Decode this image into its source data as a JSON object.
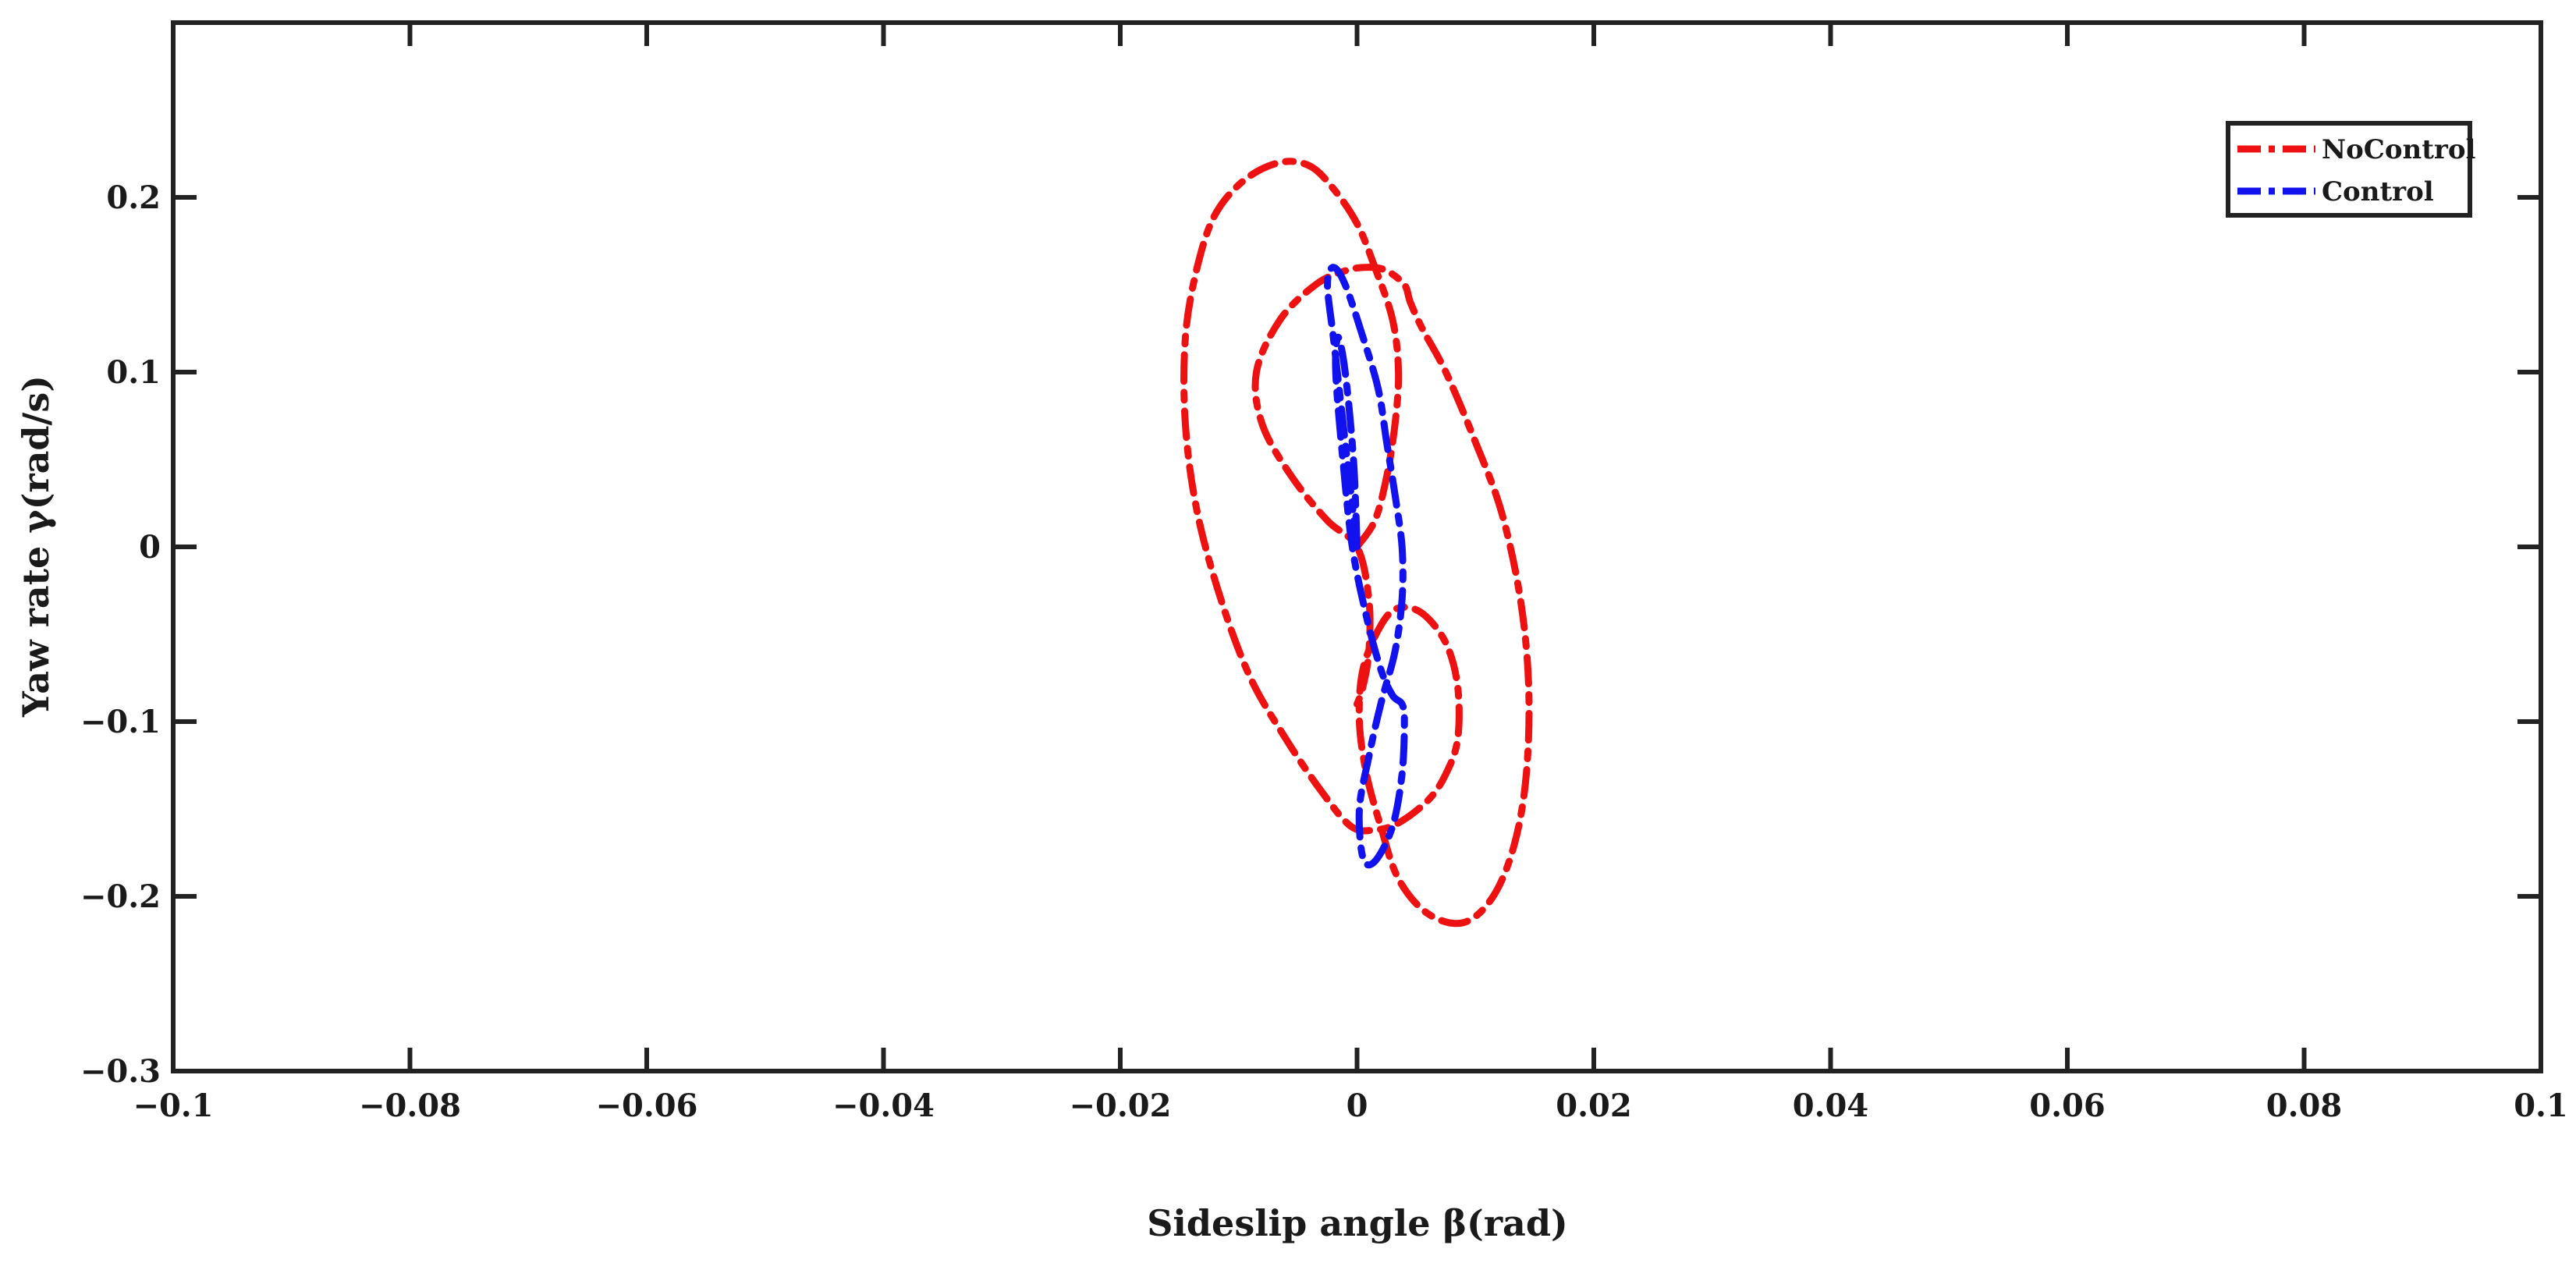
{
  "chart_data": {
    "type": "line",
    "title": "",
    "xlabel": "Sideslip angle β(rad)",
    "ylabel": "Yaw rate γ(rad/s)",
    "xlim": [
      -0.1,
      0.1
    ],
    "ylim": [
      -0.3,
      0.3
    ],
    "xticks": [
      -0.1,
      -0.08,
      -0.06,
      -0.04,
      -0.02,
      0,
      0.02,
      0.04,
      0.06,
      0.08,
      0.1
    ],
    "xtick_labels": [
      "−0.1",
      "−0.08",
      "−0.06",
      "−0.04",
      "−0.02",
      "0",
      "0.02",
      "0.04",
      "0.06",
      "0.08",
      "0.1"
    ],
    "yticks": [
      -0.3,
      -0.2,
      -0.1,
      0,
      0.1,
      0.2
    ],
    "ytick_labels": [
      "−0.3",
      "−0.2",
      "−0.1",
      "0",
      "0.1",
      "0.2"
    ],
    "grid": false,
    "legend_position": "top-right",
    "series": [
      {
        "name": "NoControl",
        "color": "#ee1111",
        "line_style": "dash-dot",
        "x": [
          0.0,
          0.0015,
          0.0025,
          0.0032,
          0.0035,
          0.003,
          0.0015,
          0.0,
          -0.002,
          -0.004,
          -0.0065,
          -0.0095,
          -0.012,
          -0.0135,
          -0.0145,
          -0.0145,
          -0.0135,
          -0.0115,
          -0.009,
          -0.006,
          -0.003,
          -0.0005,
          0.0015,
          0.0035,
          0.006,
          0.0075,
          0.0085,
          0.0085,
          0.0075,
          0.0055,
          0.0035,
          0.002,
          0.0005,
          0.0002,
          0.0008,
          0.002,
          0.0035,
          0.006,
          0.009,
          0.0115,
          0.0133,
          0.0143,
          0.0145,
          0.0138,
          0.0122,
          0.01,
          0.0075,
          0.0055,
          0.0045,
          0.004,
          0.0025,
          0.001,
          -0.001,
          -0.0035,
          -0.0065,
          -0.0085,
          -0.008,
          -0.0055,
          -0.0025,
          0.0,
          0.001,
          0.001,
          0.0005,
          0.0
        ],
        "y": [
          0.0,
          0.015,
          0.04,
          0.07,
          0.1,
          0.13,
          0.16,
          0.185,
          0.205,
          0.218,
          0.22,
          0.21,
          0.19,
          0.16,
          0.12,
          0.07,
          0.02,
          -0.03,
          -0.075,
          -0.11,
          -0.14,
          -0.16,
          -0.162,
          -0.158,
          -0.145,
          -0.13,
          -0.11,
          -0.08,
          -0.055,
          -0.038,
          -0.035,
          -0.045,
          -0.07,
          -0.1,
          -0.13,
          -0.16,
          -0.19,
          -0.21,
          -0.215,
          -0.2,
          -0.17,
          -0.13,
          -0.08,
          -0.03,
          0.02,
          0.06,
          0.1,
          0.125,
          0.14,
          0.15,
          0.158,
          0.16,
          0.158,
          0.15,
          0.13,
          0.1,
          0.07,
          0.04,
          0.015,
          0.0,
          -0.03,
          -0.06,
          -0.08,
          -0.09
        ]
      },
      {
        "name": "Control",
        "color": "#1212ee",
        "line_style": "dash-dot",
        "x": [
          0.0,
          -0.0005,
          -0.001,
          -0.0015,
          -0.002,
          -0.0025,
          -0.002,
          -0.001,
          0.0005,
          0.0018,
          0.0025,
          0.0032,
          0.0038,
          0.0038,
          0.0032,
          0.002,
          0.001,
          0.0002,
          0.0005,
          0.0015,
          0.003,
          0.0038,
          0.004,
          0.0038,
          0.003,
          0.002,
          0.0008,
          -0.0004,
          -0.0012,
          -0.0018,
          -0.0016,
          -0.001,
          -0.0003,
          0.0
        ],
        "y": [
          0.0,
          0.03,
          0.06,
          0.09,
          0.12,
          0.15,
          0.16,
          0.15,
          0.12,
          0.09,
          0.06,
          0.03,
          0.0,
          -0.03,
          -0.06,
          -0.09,
          -0.12,
          -0.15,
          -0.178,
          -0.18,
          -0.16,
          -0.13,
          -0.1,
          -0.09,
          -0.085,
          -0.07,
          -0.04,
          0.0,
          0.05,
          0.1,
          0.12,
          0.1,
          0.05,
          0.0
        ]
      }
    ]
  }
}
